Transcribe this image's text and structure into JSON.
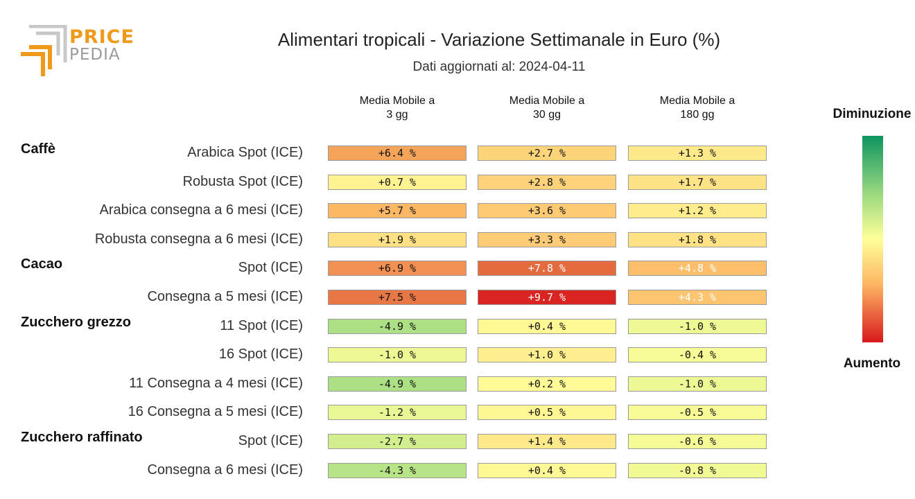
{
  "header": {
    "title": "Alimentari tropicali - Variazione Settimanale in Euro (%)",
    "subtitle": "Dati aggiornati al: 2024-04-11"
  },
  "logo": {
    "word1": "PRICE",
    "word2": "PEDIA"
  },
  "legend": {
    "top_label": "Diminuzione",
    "bottom_label": "Aumento"
  },
  "colors": {
    "brand_orange": "#f09a1c",
    "scale_green": "#0e9460",
    "scale_yellow": "#ffff99",
    "scale_orange": "#fdb563",
    "scale_red": "#d7191c"
  },
  "chart_data": {
    "type": "heatmap",
    "title": "Alimentari tropicali - Variazione Settimanale in Euro (%)",
    "columns": [
      "Media Mobile a\n3 gg",
      "Media Mobile a\n30 gg",
      "Media Mobile a\n180 gg"
    ],
    "groups": [
      {
        "name": "Caffè",
        "rows": [
          {
            "label": "Arabica Spot (ICE)",
            "values": [
              "+6.4 %",
              "+2.7 %",
              "+1.3 %"
            ]
          },
          {
            "label": "Robusta Spot (ICE)",
            "values": [
              "+0.7 %",
              "+2.8 %",
              "+1.7 %"
            ]
          },
          {
            "label": "Arabica consegna a 6 mesi (ICE)",
            "values": [
              "+5.7 %",
              "+3.6 %",
              "+1.2 %"
            ]
          },
          {
            "label": "Robusta consegna a 6 mesi (ICE)",
            "values": [
              "+1.9 %",
              "+3.3 %",
              "+1.8 %"
            ]
          }
        ]
      },
      {
        "name": "Cacao",
        "rows": [
          {
            "label": "Spot (ICE)",
            "values": [
              "+6.9 %",
              "+7.8 %",
              "+4.8 %"
            ]
          },
          {
            "label": "Consegna a 5 mesi (ICE)",
            "values": [
              "+7.5 %",
              "+9.7 %",
              "+4.3 %"
            ]
          }
        ]
      },
      {
        "name": "Zucchero grezzo",
        "rows": [
          {
            "label": "11 Spot (ICE)",
            "values": [
              "-4.9 %",
              "+0.4 %",
              "-1.0 %"
            ]
          },
          {
            "label": "16 Spot (ICE)",
            "values": [
              "-1.0 %",
              "+1.0 %",
              "-0.4 %"
            ]
          },
          {
            "label": "11 Consegna a 4 mesi (ICE)",
            "values": [
              "-4.9 %",
              "+0.2 %",
              "-1.0 %"
            ]
          },
          {
            "label": "16 Consegna a 5 mesi (ICE)",
            "values": [
              "-1.2 %",
              "+0.5 %",
              "-0.5 %"
            ]
          }
        ]
      },
      {
        "name": "Zucchero raffinato",
        "rows": [
          {
            "label": "Spot (ICE)",
            "values": [
              "-2.7 %",
              "+1.4 %",
              "-0.6 %"
            ]
          },
          {
            "label": "Consegna a 6 mesi (ICE)",
            "values": [
              "-4.3 %",
              "+0.4 %",
              "-0.8 %"
            ]
          }
        ]
      }
    ]
  }
}
